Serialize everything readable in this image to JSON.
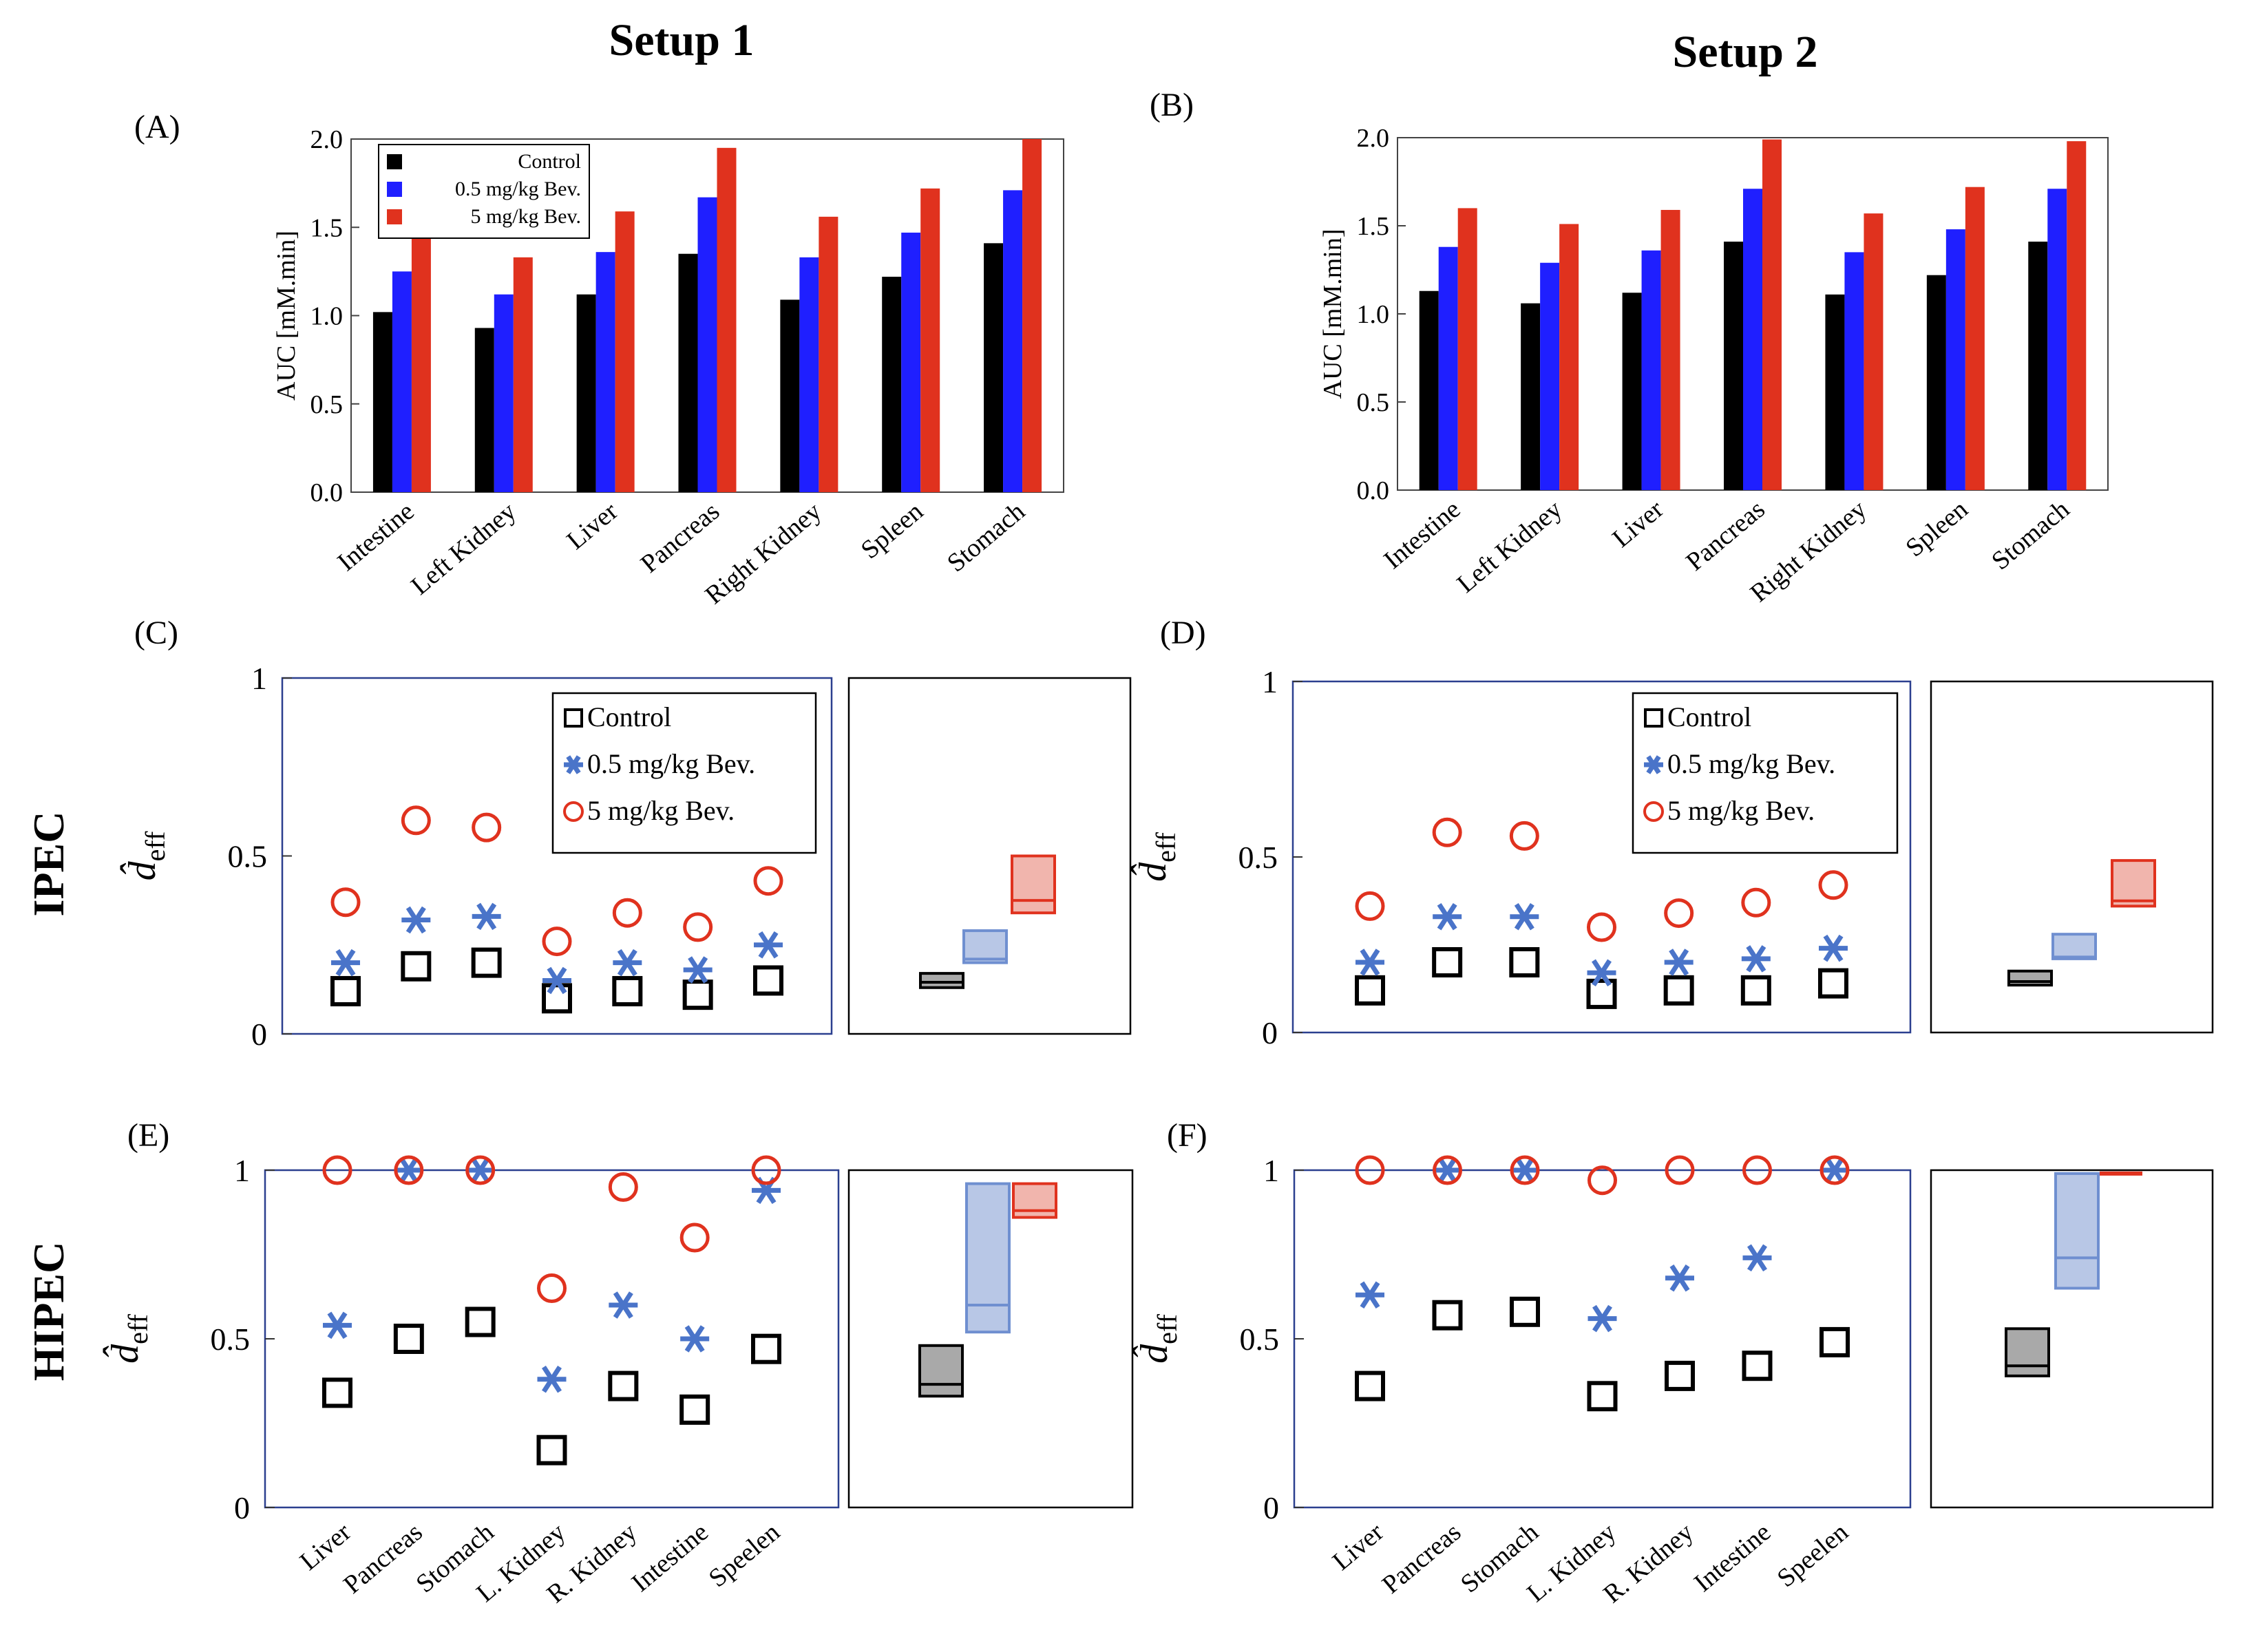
{
  "titles": {
    "setup1": "Setup 1",
    "setup2": "Setup 2"
  },
  "rows": {
    "ipec": "IPEC",
    "hipec": "HIPEC"
  },
  "colors": {
    "control": "#000000",
    "low": "#1f1fff",
    "high": "#e0321e",
    "marker_low": "#4a74c9",
    "marker_high": "#e0321e",
    "box_control_fill": "#a9a9a9",
    "box_low_fill": "#b8c7e6",
    "box_low_edge": "#6f8fd0",
    "box_high_fill": "#f1b5ad",
    "box_high_edge": "#e0321e",
    "frame_blue": "#2b3f8f"
  },
  "legend": {
    "control": "Control",
    "low": "0.5 mg/kg Bev.",
    "high": "5 mg/kg Bev."
  },
  "bar_ylabel": "AUC [mM.min]",
  "deff_ylabel": "d̂",
  "deff_ylabel_sub": "eff",
  "bar_categories": [
    "Intestine",
    "Left Kidney",
    "Liver",
    "Pancreas",
    "Right Kidney",
    "Spleen",
    "Stomach"
  ],
  "bar_yticks": [
    "0.0",
    "0.5",
    "1.0",
    "1.5",
    "2.0"
  ],
  "scatter_categories": [
    "Liver",
    "Pancreas",
    "Stomach",
    "L. Kidney",
    "R. Kidney",
    "Intestine",
    "Speelen"
  ],
  "scatter_yticks": [
    "0",
    "0.5",
    "1"
  ],
  "chart_data": [
    {
      "id": "A",
      "label": "(A)",
      "type": "bar",
      "title": "Setup 1",
      "xlabel": "",
      "ylabel": "AUC [mM.min]",
      "ylim": [
        0,
        2.0
      ],
      "categories": [
        "Intestine",
        "Left Kidney",
        "Liver",
        "Pancreas",
        "Right Kidney",
        "Spleen",
        "Stomach"
      ],
      "series": [
        {
          "name": "Control",
          "values": [
            1.02,
            0.93,
            1.12,
            1.35,
            1.09,
            1.22,
            1.41
          ]
        },
        {
          "name": "0.5 mg/kg Bev.",
          "values": [
            1.25,
            1.12,
            1.36,
            1.67,
            1.33,
            1.47,
            1.71
          ]
        },
        {
          "name": "5 mg/kg Bev.",
          "values": [
            1.46,
            1.33,
            1.59,
            1.95,
            1.56,
            1.72,
            2.0
          ]
        }
      ],
      "legend": "top-left"
    },
    {
      "id": "B",
      "label": "(B)",
      "type": "bar",
      "title": "Setup 2",
      "xlabel": "",
      "ylabel": "AUC [mM.min]",
      "ylim": [
        0,
        2.0
      ],
      "categories": [
        "Intestine",
        "Left Kidney",
        "Liver",
        "Pancreas",
        "Right Kidney",
        "Spleen",
        "Stomach"
      ],
      "series": [
        {
          "name": "Control",
          "values": [
            1.13,
            1.06,
            1.12,
            1.41,
            1.11,
            1.22,
            1.41
          ]
        },
        {
          "name": "0.5 mg/kg Bev.",
          "values": [
            1.38,
            1.29,
            1.36,
            1.71,
            1.35,
            1.48,
            1.71
          ]
        },
        {
          "name": "5 mg/kg Bev.",
          "values": [
            1.6,
            1.51,
            1.59,
            1.99,
            1.57,
            1.72,
            1.98
          ]
        }
      ]
    },
    {
      "id": "C",
      "label": "(C)",
      "type": "scatter",
      "title": "IPEC Setup 1",
      "ylabel": "d̂ eff",
      "ylim": [
        0,
        1
      ],
      "categories": [
        "Liver",
        "Pancreas",
        "Stomach",
        "L. Kidney",
        "R. Kidney",
        "Intestine",
        "Speelen"
      ],
      "series": [
        {
          "name": "Control",
          "values": [
            0.12,
            0.19,
            0.2,
            0.1,
            0.12,
            0.11,
            0.15
          ]
        },
        {
          "name": "0.5 mg/kg Bev.",
          "values": [
            0.2,
            0.32,
            0.33,
            0.15,
            0.2,
            0.18,
            0.25
          ]
        },
        {
          "name": "5 mg/kg Bev.",
          "values": [
            0.37,
            0.6,
            0.58,
            0.26,
            0.34,
            0.3,
            0.43
          ]
        }
      ],
      "legend": "top-right",
      "summary_boxes": [
        {
          "name": "Control",
          "low": 0.13,
          "median": 0.145,
          "high": 0.17
        },
        {
          "name": "0.5 mg/kg Bev.",
          "low": 0.2,
          "median": 0.21,
          "high": 0.29
        },
        {
          "name": "5 mg/kg Bev.",
          "low": 0.34,
          "median": 0.375,
          "high": 0.5
        }
      ]
    },
    {
      "id": "D",
      "label": "(D)",
      "type": "scatter",
      "title": "IPEC Setup 2",
      "ylabel": "d̂ eff",
      "ylim": [
        0,
        1
      ],
      "categories": [
        "Liver",
        "Pancreas",
        "Stomach",
        "L. Kidney",
        "R. Kidney",
        "Intestine",
        "Speelen"
      ],
      "series": [
        {
          "name": "Control",
          "values": [
            0.12,
            0.2,
            0.2,
            0.11,
            0.12,
            0.12,
            0.14
          ]
        },
        {
          "name": "0.5 mg/kg Bev.",
          "values": [
            0.2,
            0.33,
            0.33,
            0.17,
            0.2,
            0.21,
            0.24
          ]
        },
        {
          "name": "5 mg/kg Bev.",
          "values": [
            0.36,
            0.57,
            0.56,
            0.3,
            0.34,
            0.37,
            0.42
          ]
        }
      ],
      "legend": "top-right",
      "summary_boxes": [
        {
          "name": "Control",
          "low": 0.135,
          "median": 0.145,
          "high": 0.175
        },
        {
          "name": "0.5 mg/kg Bev.",
          "low": 0.21,
          "median": 0.215,
          "high": 0.28
        },
        {
          "name": "5 mg/kg Bev.",
          "low": 0.36,
          "median": 0.375,
          "high": 0.49
        }
      ]
    },
    {
      "id": "E",
      "label": "(E)",
      "type": "scatter",
      "title": "HIPEC Setup 1",
      "ylabel": "d̂ eff",
      "ylim": [
        0,
        1
      ],
      "categories": [
        "Liver",
        "Pancreas",
        "Stomach",
        "L. Kidney",
        "R. Kidney",
        "Intestine",
        "Speelen"
      ],
      "series": [
        {
          "name": "Control",
          "values": [
            0.34,
            0.5,
            0.55,
            0.17,
            0.36,
            0.29,
            0.47
          ]
        },
        {
          "name": "0.5 mg/kg Bev.",
          "values": [
            0.54,
            1.0,
            1.0,
            0.38,
            0.6,
            0.5,
            0.94
          ]
        },
        {
          "name": "5 mg/kg Bev.",
          "values": [
            1.0,
            1.0,
            1.0,
            0.65,
            0.95,
            0.8,
            1.0
          ]
        }
      ],
      "summary_boxes": [
        {
          "name": "Control",
          "low": 0.33,
          "median": 0.365,
          "high": 0.48
        },
        {
          "name": "0.5 mg/kg Bev.",
          "low": 0.52,
          "median": 0.6,
          "high": 0.96
        },
        {
          "name": "5 mg/kg Bev.",
          "low": 0.86,
          "median": 0.88,
          "high": 0.96
        }
      ]
    },
    {
      "id": "F",
      "label": "(F)",
      "type": "scatter",
      "title": "HIPEC Setup 2",
      "ylabel": "d̂ eff",
      "ylim": [
        0,
        1
      ],
      "categories": [
        "Liver",
        "Pancreas",
        "Stomach",
        "L. Kidney",
        "R. Kidney",
        "Intestine",
        "Speelen"
      ],
      "series": [
        {
          "name": "Control",
          "values": [
            0.36,
            0.57,
            0.58,
            0.33,
            0.39,
            0.42,
            0.49
          ]
        },
        {
          "name": "0.5 mg/kg Bev.",
          "values": [
            0.63,
            1.0,
            1.0,
            0.56,
            0.68,
            0.74,
            1.0
          ]
        },
        {
          "name": "5 mg/kg Bev.",
          "values": [
            1.0,
            1.0,
            1.0,
            0.97,
            1.0,
            1.0,
            1.0
          ]
        }
      ],
      "summary_boxes": [
        {
          "name": "Control",
          "low": 0.39,
          "median": 0.42,
          "high": 0.53
        },
        {
          "name": "0.5 mg/kg Bev.",
          "low": 0.65,
          "median": 0.74,
          "high": 0.99
        },
        {
          "name": "5 mg/kg Bev.",
          "low": 0.985,
          "median": 0.99,
          "high": 0.995
        }
      ]
    }
  ]
}
